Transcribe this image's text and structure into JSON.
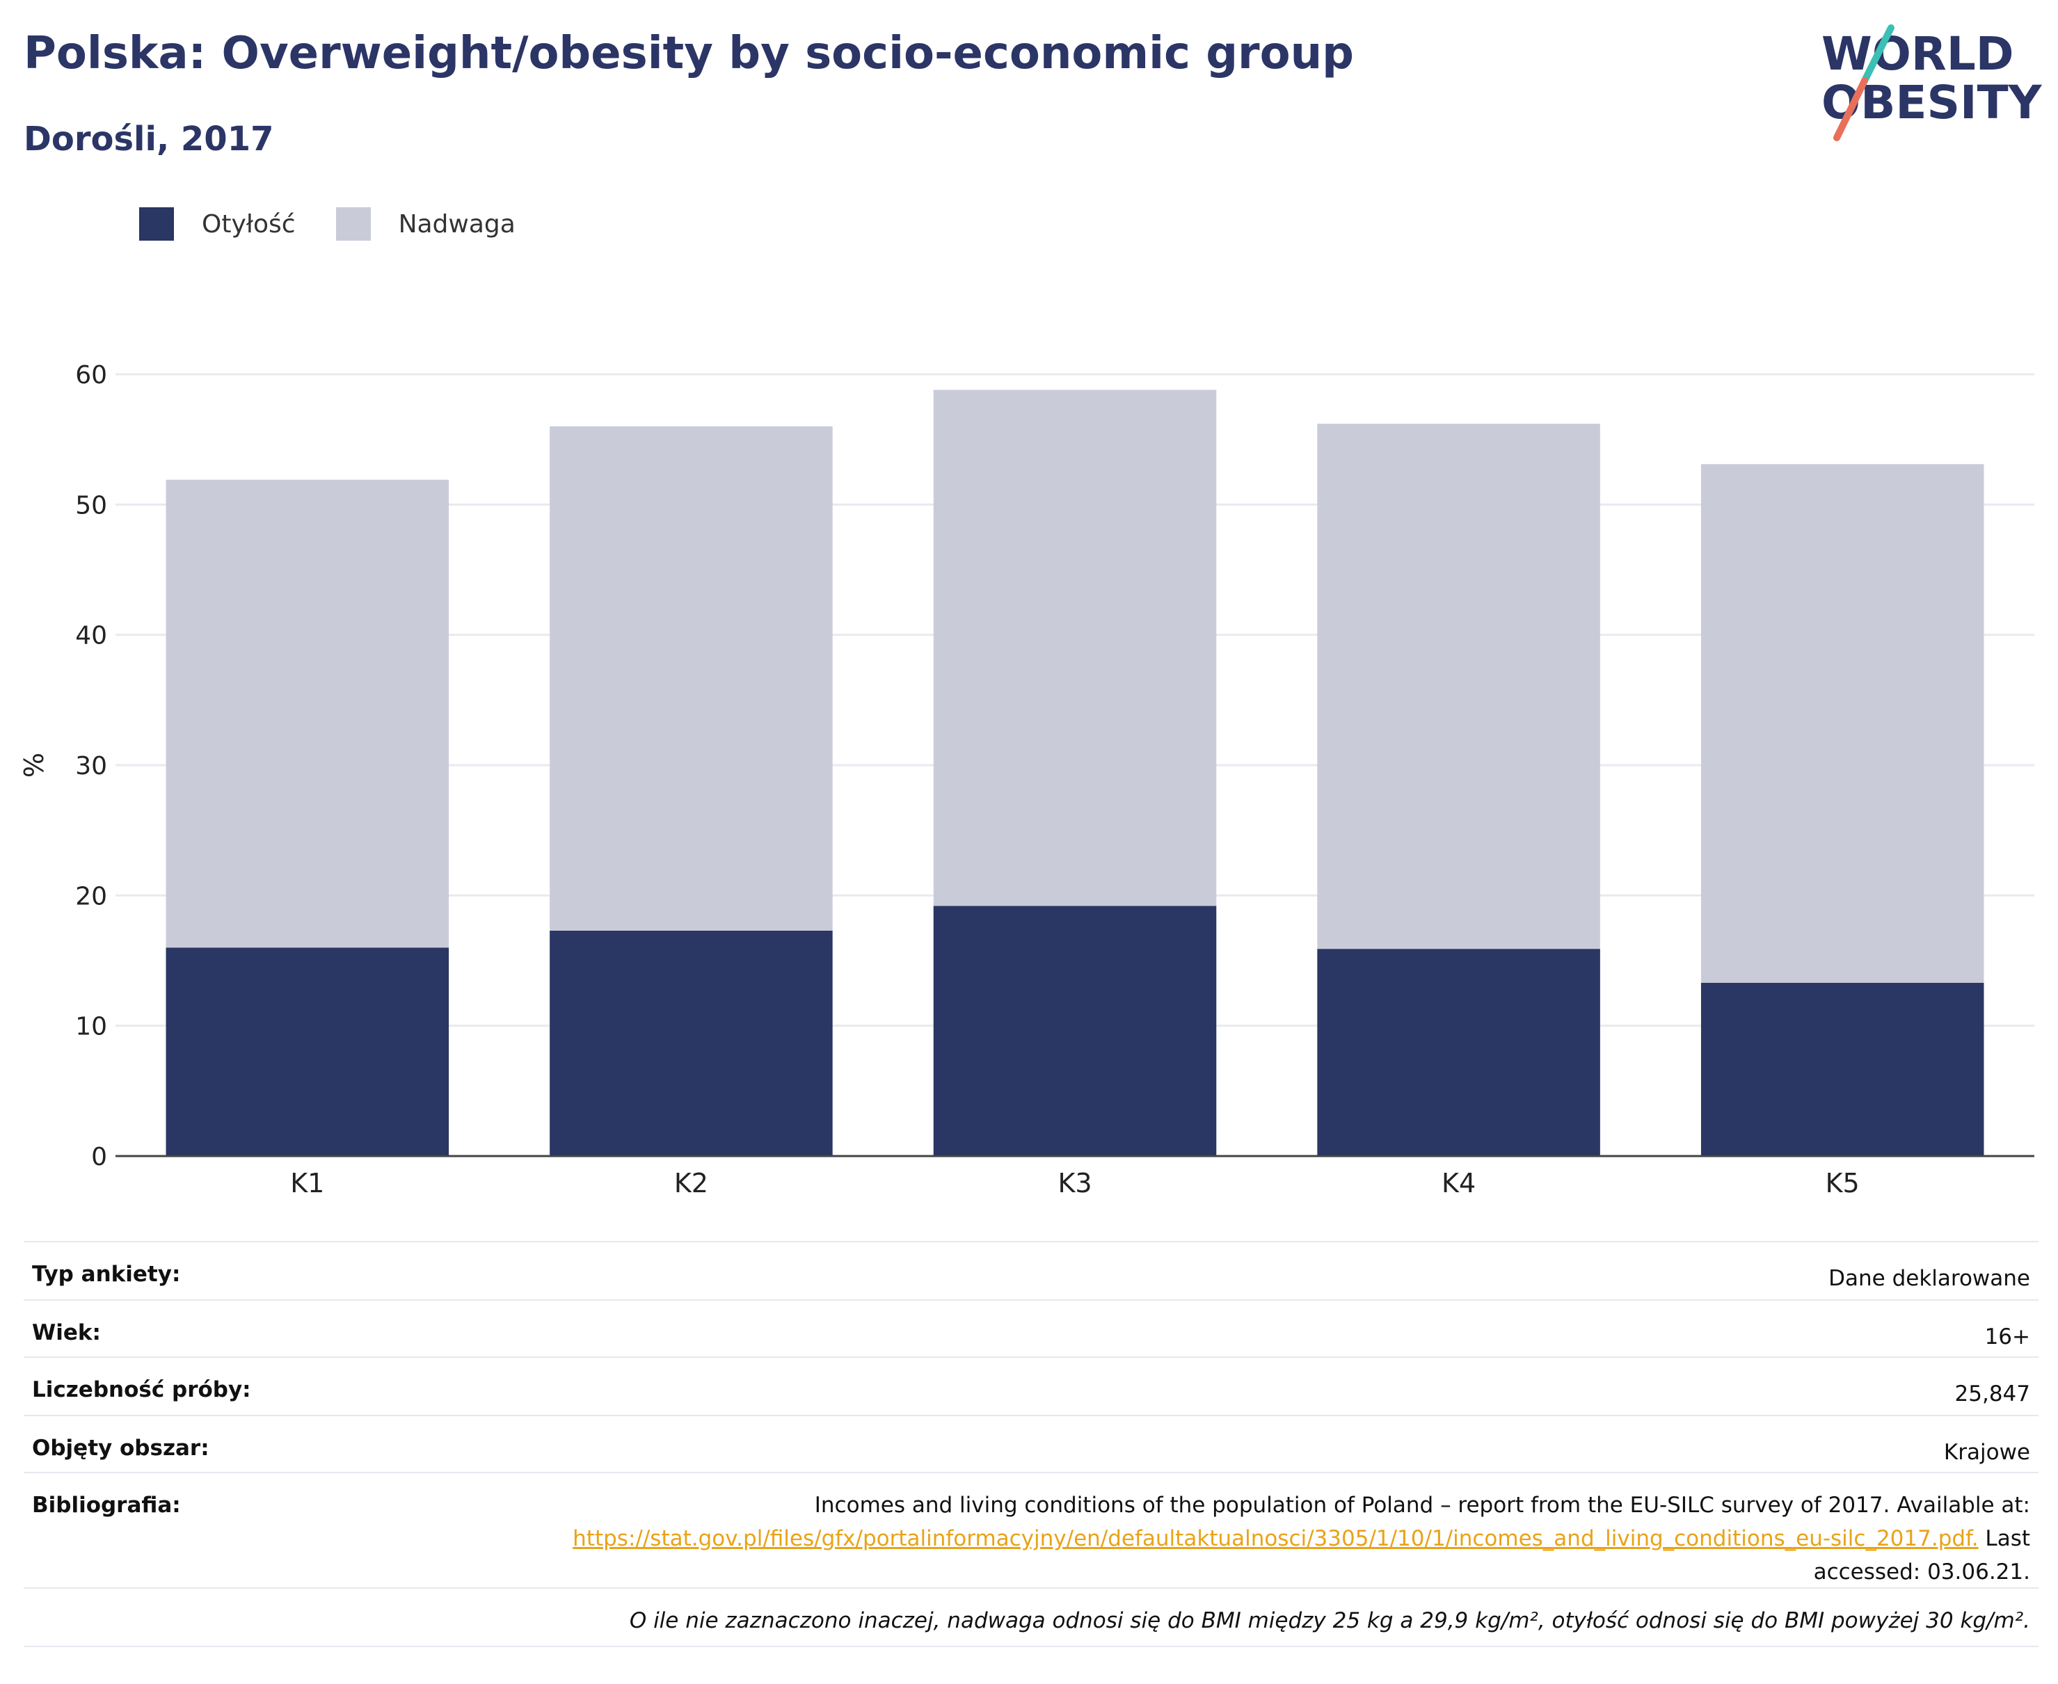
{
  "header": {
    "title": "Polska: Overweight/obesity by socio-economic group",
    "subtitle": "Dorośli, 2017"
  },
  "logo": {
    "line1": "WORLD",
    "line2": "OBESITY",
    "colors": {
      "text": "#2b3566",
      "slash_teal": "#3cbfb4",
      "slash_coral": "#e8705a"
    }
  },
  "legend": [
    {
      "label": "Otyłość",
      "color": "#2a3663"
    },
    {
      "label": "Nadwaga",
      "color": "#c9ccd8"
    }
  ],
  "chart_data": {
    "type": "bar",
    "stacked": true,
    "categories": [
      "K1",
      "K2",
      "K3",
      "K4",
      "K5"
    ],
    "series": [
      {
        "name": "Otyłość",
        "color": "#2a3663",
        "values": [
          16.0,
          17.3,
          19.2,
          15.9,
          13.3
        ]
      },
      {
        "name": "Nadwaga",
        "color": "#c9ccd8",
        "values": [
          35.9,
          38.7,
          39.6,
          40.3,
          39.8
        ]
      }
    ],
    "ylabel": "%",
    "ylim": [
      0,
      60
    ],
    "yticks": [
      0,
      10,
      20,
      30,
      40,
      50,
      60
    ],
    "grid": true,
    "legend_position": "top-left"
  },
  "meta": {
    "survey_type": {
      "label": "Typ ankiety:",
      "value": "Dane deklarowane"
    },
    "age": {
      "label": "Wiek:",
      "value": "16+"
    },
    "sample": {
      "label": "Liczebność próby:",
      "value": "25,847"
    },
    "area": {
      "label": "Objęty obszar:",
      "value": "Krajowe"
    },
    "bibliography": {
      "label": "Bibliografia:",
      "text_before": "Incomes and living conditions of the population of Poland – report from the EU-SILC survey of 2017. Available at:",
      "link": "https://stat.gov.pl/files/gfx/portalinformacyjny/en/defaultaktualnosci/3305/1/10/1/incomes_and_living_conditions_eu-silc_2017.pdf.",
      "text_after_1": "Last",
      "text_after_2": "accessed: 03.06.21."
    },
    "footnote": "O ile nie zaznaczono inaczej, nadwaga odnosi się do BMI między 25 kg a 29,9 kg/m², otyłość odnosi się do BMI powyżej 30 kg/m²."
  }
}
